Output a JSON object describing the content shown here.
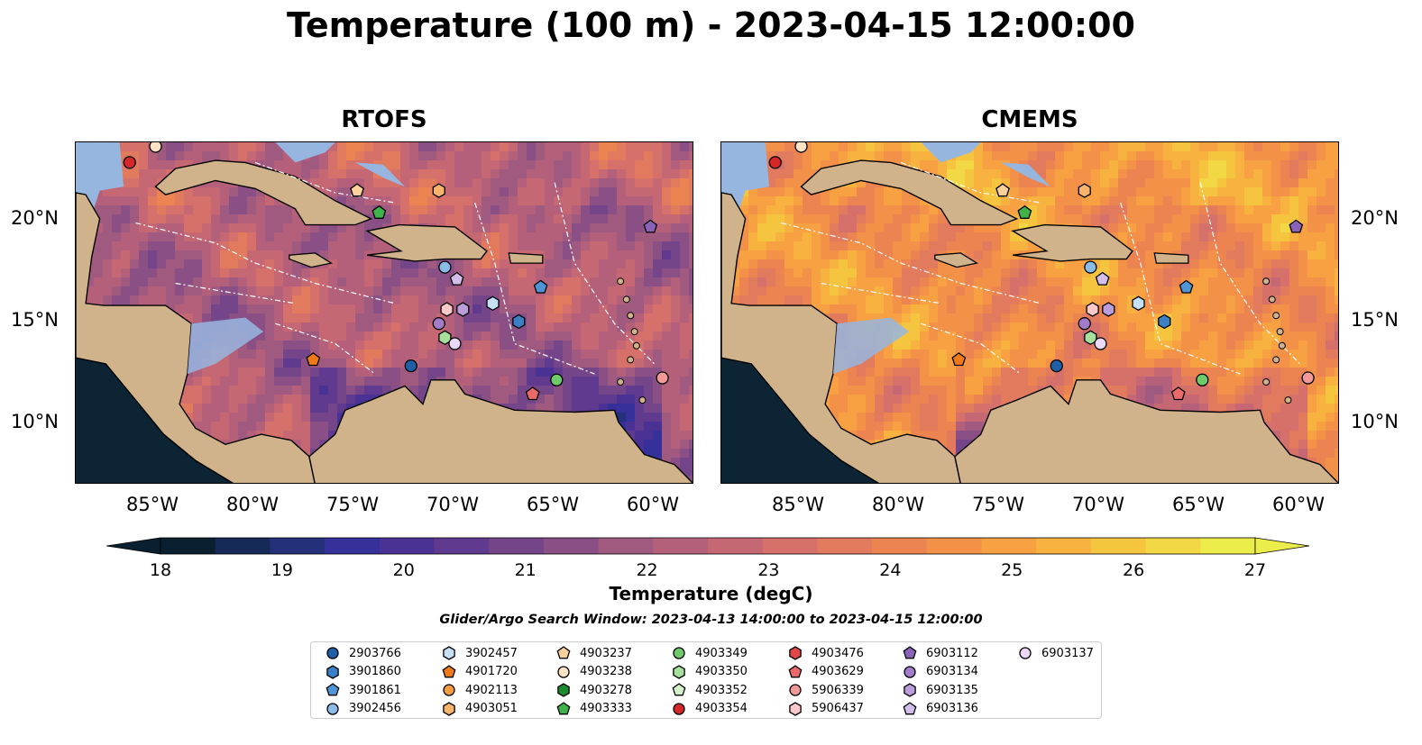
{
  "figure": {
    "title": "Temperature (100 m) - 2023-04-15 12:00:00",
    "search_window": "Glider/Argo Search Window: 2023-04-13 14:00:00 to 2023-04-15 12:00:00"
  },
  "panels": [
    {
      "title": "RTOFS",
      "palette_shift": 0
    },
    {
      "title": "CMEMS",
      "palette_shift": 2.3
    }
  ],
  "axes": {
    "x_ticks": [
      "85°W",
      "80°W",
      "75°W",
      "70°W",
      "65°W",
      "60°W"
    ],
    "y_ticks": [
      "20°N",
      "15°N",
      "10°N"
    ],
    "lon_range": [
      -89,
      -58
    ],
    "lat_range": [
      7,
      24
    ]
  },
  "colorbar": {
    "label": "Temperature (degC)",
    "ticks": [
      "18",
      "19",
      "20",
      "21",
      "22",
      "23",
      "24",
      "25",
      "26",
      "27"
    ],
    "range": [
      18,
      27
    ],
    "colors": [
      "#0a2030",
      "#162a57",
      "#24307a",
      "#35309a",
      "#4a3294",
      "#603a8e",
      "#754589",
      "#8a5085",
      "#a05a80",
      "#b4607a",
      "#c66873",
      "#d6706a",
      "#e27a5e",
      "#ec8452",
      "#f39148",
      "#f7a142",
      "#f8b23f",
      "#f6c540",
      "#f2d844",
      "#ecec4a"
    ]
  },
  "map_colors": {
    "land": "#d0b38a",
    "shelf": "#96b6e0",
    "deep_pacific": "#0d2434",
    "floats_outline": "#000000"
  },
  "legend": {
    "items": [
      {
        "id": "2903766",
        "shape": "circle",
        "color": "#1f5fa8"
      },
      {
        "id": "3901860",
        "shape": "hexagon",
        "color": "#3b7fc4"
      },
      {
        "id": "3901861",
        "shape": "pentagon",
        "color": "#4f94d4"
      },
      {
        "id": "3902456",
        "shape": "circle",
        "color": "#8bbbe8"
      },
      {
        "id": "3902457",
        "shape": "hexagon",
        "color": "#c6e0f6"
      },
      {
        "id": "4901720",
        "shape": "pentagon",
        "color": "#ef7a1a"
      },
      {
        "id": "4902113",
        "shape": "circle",
        "color": "#f59b40"
      },
      {
        "id": "4903051",
        "shape": "hexagon",
        "color": "#f8b46a"
      },
      {
        "id": "4903237",
        "shape": "pentagon",
        "color": "#fbd09a"
      },
      {
        "id": "4903238",
        "shape": "circle",
        "color": "#fde3c4"
      },
      {
        "id": "4903278",
        "shape": "hexagon",
        "color": "#1a8a2e"
      },
      {
        "id": "4903333",
        "shape": "pentagon",
        "color": "#3fb34a"
      },
      {
        "id": "4903349",
        "shape": "circle",
        "color": "#6fca6a"
      },
      {
        "id": "4903350",
        "shape": "hexagon",
        "color": "#a6e09c"
      },
      {
        "id": "4903352",
        "shape": "pentagon",
        "color": "#d3f2cc"
      },
      {
        "id": "4903354",
        "shape": "circle",
        "color": "#d62728"
      },
      {
        "id": "4903476",
        "shape": "hexagon",
        "color": "#e04848"
      },
      {
        "id": "4903629",
        "shape": "pentagon",
        "color": "#ea6a6a"
      },
      {
        "id": "5906339",
        "shape": "circle",
        "color": "#f29a9a"
      },
      {
        "id": "5906437",
        "shape": "hexagon",
        "color": "#fbc9c9"
      },
      {
        "id": "6903112",
        "shape": "pentagon",
        "color": "#8a63b8"
      },
      {
        "id": "6903134",
        "shape": "circle",
        "color": "#a27ccb"
      },
      {
        "id": "6903135",
        "shape": "hexagon",
        "color": "#bb9ddc"
      },
      {
        "id": "6903136",
        "shape": "pentagon",
        "color": "#d3bdea"
      },
      {
        "id": "6903137",
        "shape": "circle",
        "color": "#ead9f6"
      }
    ]
  },
  "float_positions": [
    {
      "id": "4903354",
      "lon": -86.3,
      "lat": 23.0
    },
    {
      "id": "4903238",
      "lon": -85.0,
      "lat": 23.8
    },
    {
      "id": "4903237",
      "lon": -74.9,
      "lat": 21.6
    },
    {
      "id": "4903051",
      "lon": -70.8,
      "lat": 21.6
    },
    {
      "id": "4903333",
      "lon": -73.8,
      "lat": 20.5
    },
    {
      "id": "6903112",
      "lon": -60.2,
      "lat": 19.8
    },
    {
      "id": "3902456",
      "lon": -70.5,
      "lat": 17.8
    },
    {
      "id": "6903136",
      "lon": -69.9,
      "lat": 17.2
    },
    {
      "id": "3901861",
      "lon": -65.7,
      "lat": 16.8
    },
    {
      "id": "3902457",
      "lon": -68.1,
      "lat": 16.0
    },
    {
      "id": "5906437",
      "lon": -70.4,
      "lat": 15.7
    },
    {
      "id": "6903135",
      "lon": -69.6,
      "lat": 15.7
    },
    {
      "id": "6903134",
      "lon": -70.8,
      "lat": 15.0
    },
    {
      "id": "3901860",
      "lon": -66.8,
      "lat": 15.1
    },
    {
      "id": "4903350",
      "lon": -70.5,
      "lat": 14.3
    },
    {
      "id": "6903137",
      "lon": -70.0,
      "lat": 14.0
    },
    {
      "id": "4901720",
      "lon": -77.1,
      "lat": 13.2
    },
    {
      "id": "2903766",
      "lon": -72.2,
      "lat": 12.9
    },
    {
      "id": "4903349",
      "lon": -64.9,
      "lat": 12.2
    },
    {
      "id": "5906339",
      "lon": -59.6,
      "lat": 12.3
    },
    {
      "id": "4903629",
      "lon": -66.1,
      "lat": 11.5
    }
  ]
}
